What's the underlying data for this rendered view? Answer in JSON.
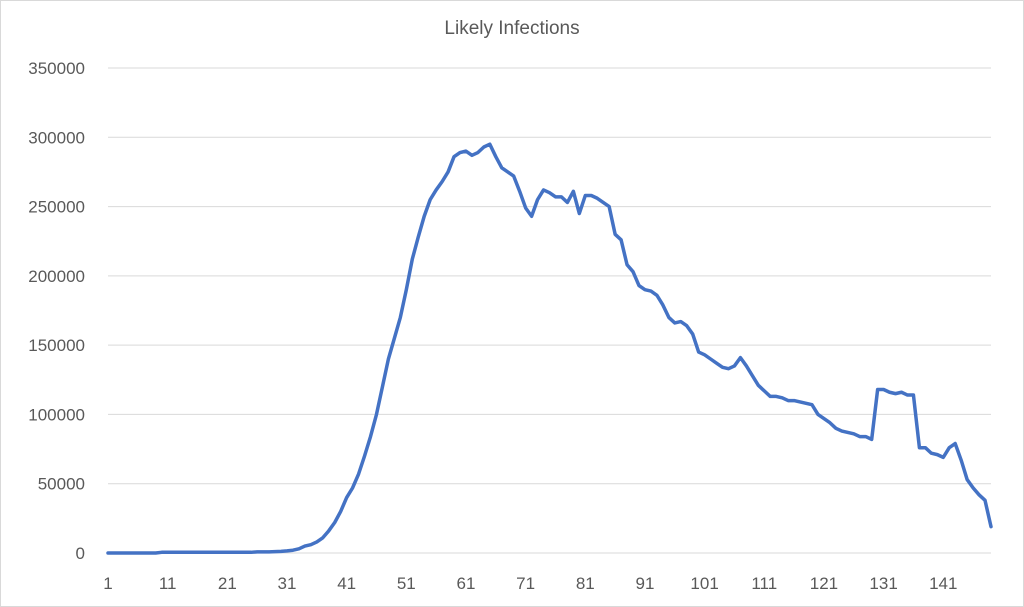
{
  "chart_data": {
    "type": "line",
    "title": "Likely Infections",
    "xlabel": "",
    "ylabel": "",
    "x_start": 1,
    "x_end": 149,
    "x_tick_labels": [
      "1",
      "11",
      "21",
      "31",
      "41",
      "51",
      "61",
      "71",
      "81",
      "91",
      "101",
      "111",
      "121",
      "131",
      "141"
    ],
    "x_tick_values": [
      1,
      11,
      21,
      31,
      41,
      51,
      61,
      71,
      81,
      91,
      101,
      111,
      121,
      131,
      141
    ],
    "y_tick_labels": [
      "0",
      "50000",
      "100000",
      "150000",
      "200000",
      "250000",
      "300000",
      "350000"
    ],
    "y_tick_values": [
      0,
      50000,
      100000,
      150000,
      200000,
      250000,
      300000,
      350000
    ],
    "ylim": [
      0,
      350000
    ],
    "grid": true,
    "legend": "none",
    "series_color": "#4472c4",
    "series": [
      {
        "values": [
          0,
          0,
          0,
          0,
          0,
          0,
          0,
          0,
          0,
          500,
          500,
          500,
          500,
          500,
          500,
          500,
          500,
          500,
          500,
          500,
          500,
          500,
          500,
          500,
          500,
          800,
          800,
          800,
          1000,
          1200,
          1500,
          2000,
          3000,
          5000,
          6000,
          8000,
          11000,
          16000,
          22000,
          30000,
          40000,
          47000,
          57000,
          70000,
          84000,
          100000,
          120000,
          140000,
          155000,
          170000,
          190000,
          212000,
          228000,
          243000,
          255000,
          262000,
          268000,
          275000,
          286000,
          289000,
          290000,
          287000,
          289000,
          293000,
          295000,
          286000,
          278000,
          275000,
          272000,
          261000,
          249000,
          243000,
          255000,
          262000,
          260000,
          257000,
          257000,
          253000,
          261000,
          245000,
          258000,
          258000,
          256000,
          253000,
          250000,
          230000,
          226000,
          208000,
          203000,
          193000,
          190000,
          189000,
          186000,
          179000,
          170000,
          166000,
          167000,
          164000,
          158000,
          145000,
          143000,
          140000,
          137000,
          134000,
          133000,
          135000,
          141000,
          135000,
          128000,
          121000,
          117000,
          113000,
          113000,
          112000,
          110000,
          110000,
          109000,
          108000,
          107000,
          100000,
          97000,
          94000,
          90000,
          88000,
          87000,
          86000,
          84000,
          84000,
          82000,
          118000,
          118000,
          116000,
          115000,
          116000,
          114000,
          114000,
          76000,
          76000,
          72000,
          71000,
          69000,
          76000,
          79000,
          67000,
          53000,
          47000,
          42000,
          38000,
          19000
        ]
      }
    ]
  }
}
